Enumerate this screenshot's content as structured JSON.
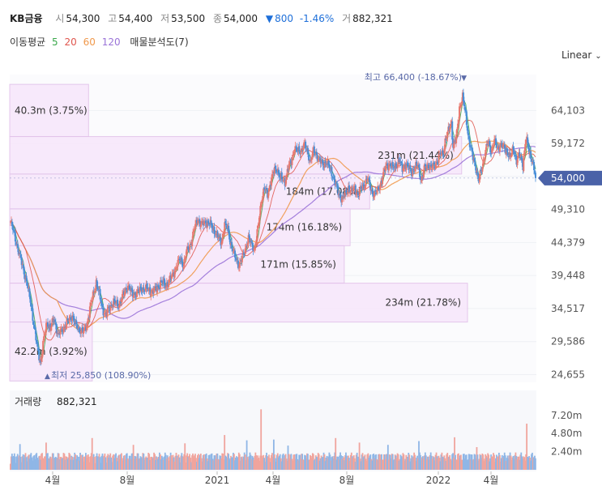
{
  "header": {
    "ticker": "KB금융",
    "open_label": "시",
    "open": "54,300",
    "high_label": "고",
    "high": "54,400",
    "low_label": "저",
    "low": "53,500",
    "close_label": "종",
    "close": "54,000",
    "change_arrow": "▼",
    "change": "800",
    "change_pct": "-1.46%",
    "volume_label": "거",
    "volume": "882,321"
  },
  "indicators": {
    "label": "이동평균",
    "periods": [
      "5",
      "20",
      "60",
      "120"
    ],
    "period_colors": [
      "#3aa84b",
      "#e0564e",
      "#f0994c",
      "#9a73d8"
    ],
    "volume_profile": "매물분석도(7)"
  },
  "scale": {
    "label": "Linear"
  },
  "colors": {
    "up": "#e8796f",
    "down": "#4a8fd8",
    "profile_fill": "#f7e8fb",
    "profile_stroke": "#e2c2ea",
    "last_price_bg": "#4a62a8"
  },
  "chart_data": {
    "type": "candlestick",
    "ylim": [
      23500,
      68500
    ],
    "y_ticks": [
      64103,
      59172,
      54241,
      49310,
      44379,
      39448,
      34517,
      29586,
      24655
    ],
    "y_tick_labels": [
      "64,103",
      "59,172",
      "",
      "49,310",
      "44,379",
      "39,448",
      "34,517",
      "29,586",
      "24,655"
    ],
    "x_tick_labels": [
      "4월",
      "8월",
      "2021",
      "4월",
      "8월",
      "2022",
      "4월"
    ],
    "last_price": 54000,
    "last_price_label": "54,000",
    "high_marker": {
      "label": "최고 66,400 (-18.67%)",
      "value": 66400
    },
    "low_marker": {
      "label": "최저 25,850 (108.90%)",
      "value": 25850
    },
    "price_anchors": [
      [
        0,
        47500
      ],
      [
        5,
        45500
      ],
      [
        10,
        43000
      ],
      [
        16,
        40500
      ],
      [
        22,
        37500
      ],
      [
        26,
        35000
      ],
      [
        30,
        31500
      ],
      [
        34,
        28500
      ],
      [
        38,
        26500
      ],
      [
        42,
        30000
      ],
      [
        46,
        32500
      ],
      [
        50,
        31500
      ],
      [
        55,
        33000
      ],
      [
        60,
        30500
      ],
      [
        66,
        31500
      ],
      [
        72,
        32500
      ],
      [
        78,
        33500
      ],
      [
        82,
        32000
      ],
      [
        86,
        31500
      ],
      [
        92,
        31000
      ],
      [
        96,
        32000
      ],
      [
        100,
        34500
      ],
      [
        104,
        36500
      ],
      [
        108,
        38500
      ],
      [
        112,
        36500
      ],
      [
        116,
        34500
      ],
      [
        120,
        33500
      ],
      [
        124,
        34500
      ],
      [
        130,
        35500
      ],
      [
        136,
        35000
      ],
      [
        142,
        36500
      ],
      [
        148,
        38000
      ],
      [
        154,
        36500
      ],
      [
        160,
        37000
      ],
      [
        166,
        37500
      ],
      [
        172,
        37500
      ],
      [
        178,
        37000
      ],
      [
        184,
        37500
      ],
      [
        190,
        38500
      ],
      [
        196,
        38000
      ],
      [
        202,
        39000
      ],
      [
        208,
        40500
      ],
      [
        214,
        42000
      ],
      [
        218,
        41000
      ],
      [
        222,
        43000
      ],
      [
        228,
        44500
      ],
      [
        232,
        46500
      ],
      [
        236,
        48000
      ],
      [
        240,
        47000
      ],
      [
        246,
        47500
      ],
      [
        252,
        47000
      ],
      [
        258,
        46000
      ],
      [
        262,
        45000
      ],
      [
        266,
        44500
      ],
      [
        270,
        47000
      ],
      [
        274,
        46500
      ],
      [
        278,
        44000
      ],
      [
        282,
        42500
      ],
      [
        288,
        41000
      ],
      [
        292,
        42000
      ],
      [
        296,
        43500
      ],
      [
        300,
        45000
      ],
      [
        304,
        44000
      ],
      [
        308,
        43500
      ],
      [
        312,
        46500
      ],
      [
        316,
        50500
      ],
      [
        320,
        52500
      ],
      [
        324,
        51500
      ],
      [
        328,
        53500
      ],
      [
        332,
        55000
      ],
      [
        336,
        55500
      ],
      [
        340,
        54000
      ],
      [
        346,
        53500
      ],
      [
        350,
        55500
      ],
      [
        354,
        56500
      ],
      [
        358,
        58500
      ],
      [
        362,
        58000
      ],
      [
        366,
        58000
      ],
      [
        370,
        59000
      ],
      [
        374,
        58000
      ],
      [
        378,
        56500
      ],
      [
        382,
        58000
      ],
      [
        386,
        57500
      ],
      [
        390,
        56500
      ],
      [
        394,
        56000
      ],
      [
        398,
        56500
      ],
      [
        402,
        55500
      ],
      [
        406,
        54500
      ],
      [
        410,
        53000
      ],
      [
        414,
        51500
      ],
      [
        418,
        51000
      ],
      [
        422,
        51500
      ],
      [
        426,
        52500
      ],
      [
        430,
        52000
      ],
      [
        434,
        52500
      ],
      [
        438,
        51500
      ],
      [
        442,
        52500
      ],
      [
        446,
        53000
      ],
      [
        450,
        54000
      ],
      [
        454,
        52500
      ],
      [
        458,
        51500
      ],
      [
        462,
        52000
      ],
      [
        466,
        53000
      ],
      [
        470,
        54500
      ],
      [
        474,
        56000
      ],
      [
        478,
        56000
      ],
      [
        482,
        55500
      ],
      [
        486,
        56000
      ],
      [
        490,
        56500
      ],
      [
        494,
        55500
      ],
      [
        498,
        56000
      ],
      [
        502,
        55500
      ],
      [
        506,
        55000
      ],
      [
        510,
        55500
      ],
      [
        514,
        56000
      ],
      [
        518,
        53500
      ],
      [
        522,
        55500
      ],
      [
        526,
        56000
      ],
      [
        530,
        55500
      ],
      [
        534,
        56000
      ],
      [
        538,
        56500
      ],
      [
        542,
        57500
      ],
      [
        546,
        58000
      ],
      [
        548,
        59500
      ],
      [
        552,
        61000
      ],
      [
        556,
        62500
      ],
      [
        558,
        58500
      ],
      [
        562,
        60000
      ],
      [
        566,
        64500
      ],
      [
        570,
        66000
      ],
      [
        574,
        63500
      ],
      [
        578,
        59500
      ],
      [
        582,
        57500
      ],
      [
        586,
        56000
      ],
      [
        590,
        53500
      ],
      [
        594,
        55500
      ],
      [
        598,
        57500
      ],
      [
        602,
        59500
      ],
      [
        606,
        58000
      ],
      [
        610,
        59500
      ],
      [
        614,
        58500
      ],
      [
        618,
        59000
      ],
      [
        622,
        58500
      ],
      [
        626,
        58000
      ],
      [
        630,
        57000
      ],
      [
        634,
        58500
      ],
      [
        638,
        56500
      ],
      [
        642,
        57500
      ],
      [
        646,
        56000
      ],
      [
        650,
        60000
      ],
      [
        654,
        58000
      ],
      [
        658,
        56500
      ],
      [
        662,
        54000
      ]
    ],
    "profile": [
      {
        "range": [
          60200,
          68000
        ],
        "volume_m": 40.3,
        "pct": 3.75,
        "label": "40.3m (3.75%)"
      },
      {
        "range": [
          54600,
          60200
        ],
        "volume_m": 231,
        "pct": 21.44,
        "label": "231m (21.44%)"
      },
      {
        "range": [
          49400,
          54600
        ],
        "volume_m": 184,
        "pct": 17.08,
        "label": "184m (17.08%)"
      },
      {
        "range": [
          43900,
          49400
        ],
        "volume_m": 174,
        "pct": 16.18,
        "label": "174m (16.18%)"
      },
      {
        "range": [
          38300,
          43900
        ],
        "volume_m": 171,
        "pct": 15.85,
        "label": "171m (15.85%)"
      },
      {
        "range": [
          32500,
          38300
        ],
        "volume_m": 234,
        "pct": 21.78,
        "label": "234m (21.78%)"
      },
      {
        "range": [
          23700,
          32500
        ],
        "volume_m": 42.2,
        "pct": 3.92,
        "label": "42.2m (3.92%)"
      }
    ],
    "volume": {
      "title": "거래량",
      "last": "882,321",
      "ylim": [
        0,
        10.5
      ],
      "y_ticks": [
        7.2,
        4.8,
        2.4
      ],
      "y_tick_labels": [
        "7.20m",
        "4.80m",
        "2.40m"
      ],
      "spikes": [
        [
          12,
          3.4
        ],
        [
          45,
          3.6
        ],
        [
          103,
          4.2
        ],
        [
          155,
          3.3
        ],
        [
          220,
          3.5
        ],
        [
          270,
          4.6
        ],
        [
          298,
          3.9
        ],
        [
          316,
          8.0
        ],
        [
          332,
          4.0
        ],
        [
          350,
          3.2
        ],
        [
          410,
          4.2
        ],
        [
          440,
          3.6
        ],
        [
          476,
          3.3
        ],
        [
          515,
          3.8
        ],
        [
          560,
          4.3
        ],
        [
          588,
          3.0
        ],
        [
          651,
          6.1
        ]
      ]
    }
  }
}
